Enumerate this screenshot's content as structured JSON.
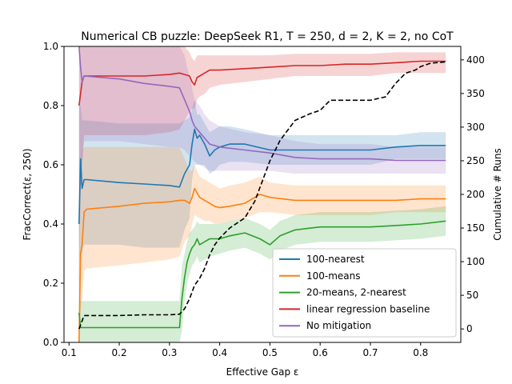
{
  "chart_data": {
    "type": "line",
    "title": "Numerical CB puzzle: DeepSeek R1, T = 250, d = 2, K = 2, no CoT",
    "xlabel": "Effective Gap ε",
    "ylabel": "FracCorrect(ε, 250)",
    "y2label": "Cumulative # Runs",
    "xlim": [
      0.09,
      0.88
    ],
    "ylim": [
      0.0,
      1.0
    ],
    "y2lim": [
      -20,
      420
    ],
    "xticks": [
      "0.1",
      "0.2",
      "0.3",
      "0.4",
      "0.5",
      "0.6",
      "0.7",
      "0.8"
    ],
    "xtick_values": [
      0.1,
      0.2,
      0.3,
      0.4,
      0.5,
      0.6,
      0.7,
      0.8
    ],
    "yticks": [
      "0.0",
      "0.2",
      "0.4",
      "0.6",
      "0.8",
      "1.0"
    ],
    "ytick_values": [
      0.0,
      0.2,
      0.4,
      0.6,
      0.8,
      1.0
    ],
    "y2ticks": [
      "0",
      "50",
      "100",
      "150",
      "200",
      "250",
      "300",
      "350",
      "400"
    ],
    "y2tick_values": [
      0,
      50,
      100,
      150,
      200,
      250,
      300,
      350,
      400
    ],
    "legend_position": "lower-right",
    "series": [
      {
        "name": "100-nearest",
        "color": "#1f77b4",
        "x": [
          0.12,
          0.123,
          0.126,
          0.13,
          0.135,
          0.2,
          0.25,
          0.3,
          0.32,
          0.33,
          0.34,
          0.345,
          0.35,
          0.355,
          0.36,
          0.37,
          0.38,
          0.39,
          0.4,
          0.42,
          0.45,
          0.5,
          0.55,
          0.6,
          0.65,
          0.7,
          0.75,
          0.8,
          0.85
        ],
        "y": [
          0.4,
          0.62,
          0.52,
          0.55,
          0.55,
          0.54,
          0.535,
          0.53,
          0.525,
          0.57,
          0.6,
          0.67,
          0.72,
          0.69,
          0.7,
          0.67,
          0.63,
          0.65,
          0.66,
          0.67,
          0.67,
          0.65,
          0.65,
          0.65,
          0.65,
          0.65,
          0.66,
          0.665,
          0.665
        ],
        "band_upper": [
          0.8,
          0.8,
          0.75,
          0.75,
          0.75,
          0.74,
          0.74,
          0.74,
          0.74,
          0.75,
          0.76,
          0.79,
          0.82,
          0.77,
          0.77,
          0.74,
          0.71,
          0.72,
          0.73,
          0.73,
          0.72,
          0.7,
          0.7,
          0.7,
          0.7,
          0.7,
          0.7,
          0.71,
          0.71
        ],
        "band_lower": [
          0.0,
          0.3,
          0.3,
          0.33,
          0.33,
          0.33,
          0.32,
          0.32,
          0.32,
          0.38,
          0.42,
          0.55,
          0.6,
          0.6,
          0.6,
          0.6,
          0.57,
          0.58,
          0.6,
          0.61,
          0.61,
          0.6,
          0.6,
          0.6,
          0.6,
          0.6,
          0.62,
          0.62,
          0.62
        ]
      },
      {
        "name": "100-means",
        "color": "#ff7f0e",
        "x": [
          0.12,
          0.123,
          0.126,
          0.13,
          0.135,
          0.2,
          0.25,
          0.3,
          0.32,
          0.33,
          0.34,
          0.345,
          0.35,
          0.36,
          0.37,
          0.38,
          0.39,
          0.4,
          0.42,
          0.45,
          0.48,
          0.5,
          0.55,
          0.6,
          0.65,
          0.7,
          0.75,
          0.8,
          0.85
        ],
        "y": [
          0.0,
          0.3,
          0.33,
          0.44,
          0.45,
          0.46,
          0.47,
          0.475,
          0.48,
          0.48,
          0.47,
          0.49,
          0.52,
          0.49,
          0.48,
          0.47,
          0.46,
          0.455,
          0.46,
          0.47,
          0.5,
          0.49,
          0.48,
          0.48,
          0.48,
          0.48,
          0.48,
          0.485,
          0.485
        ],
        "band_upper": [
          0.4,
          0.6,
          0.65,
          0.66,
          0.66,
          0.66,
          0.66,
          0.66,
          0.66,
          0.62,
          0.58,
          0.58,
          0.6,
          0.56,
          0.55,
          0.54,
          0.53,
          0.52,
          0.53,
          0.54,
          0.56,
          0.54,
          0.53,
          0.53,
          0.53,
          0.53,
          0.53,
          0.53,
          0.53
        ],
        "band_lower": [
          0.0,
          0.1,
          0.15,
          0.24,
          0.25,
          0.26,
          0.27,
          0.28,
          0.29,
          0.34,
          0.36,
          0.4,
          0.43,
          0.42,
          0.41,
          0.41,
          0.4,
          0.4,
          0.41,
          0.42,
          0.44,
          0.44,
          0.43,
          0.43,
          0.43,
          0.43,
          0.44,
          0.44,
          0.44
        ]
      },
      {
        "name": "20-means, 2-nearest",
        "color": "#2ca02c",
        "x": [
          0.12,
          0.123,
          0.126,
          0.13,
          0.2,
          0.25,
          0.3,
          0.32,
          0.325,
          0.33,
          0.335,
          0.34,
          0.345,
          0.35,
          0.355,
          0.36,
          0.37,
          0.38,
          0.4,
          0.42,
          0.45,
          0.48,
          0.5,
          0.52,
          0.55,
          0.6,
          0.65,
          0.7,
          0.75,
          0.8,
          0.85
        ],
        "y": [
          0.1,
          0.05,
          0.05,
          0.05,
          0.05,
          0.05,
          0.05,
          0.05,
          0.15,
          0.22,
          0.27,
          0.3,
          0.32,
          0.33,
          0.35,
          0.33,
          0.34,
          0.35,
          0.35,
          0.36,
          0.37,
          0.35,
          0.33,
          0.36,
          0.38,
          0.39,
          0.39,
          0.39,
          0.395,
          0.4,
          0.41
        ],
        "band_upper": [
          0.25,
          0.14,
          0.14,
          0.14,
          0.14,
          0.14,
          0.14,
          0.14,
          0.26,
          0.3,
          0.34,
          0.37,
          0.38,
          0.39,
          0.41,
          0.4,
          0.4,
          0.4,
          0.4,
          0.41,
          0.42,
          0.4,
          0.38,
          0.41,
          0.43,
          0.44,
          0.44,
          0.44,
          0.445,
          0.45,
          0.46
        ],
        "band_lower": [
          0.0,
          0.0,
          0.0,
          0.0,
          0.0,
          0.0,
          0.0,
          0.0,
          0.04,
          0.14,
          0.2,
          0.23,
          0.26,
          0.27,
          0.29,
          0.27,
          0.28,
          0.29,
          0.3,
          0.31,
          0.32,
          0.3,
          0.28,
          0.31,
          0.33,
          0.34,
          0.34,
          0.34,
          0.345,
          0.35,
          0.36
        ]
      },
      {
        "name": "linear regression baseline",
        "color": "#d62728",
        "x": [
          0.12,
          0.123,
          0.126,
          0.13,
          0.2,
          0.25,
          0.3,
          0.32,
          0.33,
          0.34,
          0.345,
          0.35,
          0.355,
          0.36,
          0.37,
          0.38,
          0.4,
          0.45,
          0.5,
          0.55,
          0.6,
          0.65,
          0.7,
          0.75,
          0.8,
          0.85
        ],
        "y": [
          0.8,
          0.84,
          0.88,
          0.9,
          0.9,
          0.9,
          0.905,
          0.91,
          0.905,
          0.9,
          0.88,
          0.87,
          0.895,
          0.9,
          0.91,
          0.92,
          0.92,
          0.925,
          0.93,
          0.935,
          0.935,
          0.94,
          0.94,
          0.945,
          0.95,
          0.95
        ],
        "band_upper": [
          1.0,
          1.0,
          1.0,
          1.0,
          1.0,
          1.0,
          1.0,
          1.0,
          1.0,
          0.98,
          0.96,
          0.95,
          0.97,
          0.97,
          0.97,
          0.97,
          0.97,
          0.97,
          0.97,
          0.975,
          0.975,
          0.975,
          0.975,
          0.98,
          0.98,
          0.98
        ],
        "band_lower": [
          0.2,
          0.5,
          0.6,
          0.7,
          0.7,
          0.7,
          0.71,
          0.72,
          0.75,
          0.78,
          0.79,
          0.79,
          0.82,
          0.83,
          0.84,
          0.86,
          0.87,
          0.88,
          0.89,
          0.9,
          0.9,
          0.9,
          0.9,
          0.91,
          0.91,
          0.91
        ]
      },
      {
        "name": "No mitigation",
        "color": "#9467bd",
        "x": [
          0.12,
          0.123,
          0.126,
          0.13,
          0.2,
          0.25,
          0.3,
          0.32,
          0.33,
          0.335,
          0.34,
          0.345,
          0.35,
          0.36,
          0.37,
          0.38,
          0.4,
          0.45,
          0.5,
          0.55,
          0.6,
          0.65,
          0.7,
          0.75,
          0.8,
          0.85
        ],
        "y": [
          1.0,
          0.93,
          0.88,
          0.9,
          0.89,
          0.875,
          0.865,
          0.86,
          0.82,
          0.8,
          0.78,
          0.75,
          0.73,
          0.71,
          0.69,
          0.67,
          0.66,
          0.65,
          0.64,
          0.625,
          0.62,
          0.62,
          0.62,
          0.615,
          0.615,
          0.615
        ],
        "band_upper": [
          1.0,
          1.0,
          1.0,
          1.0,
          1.0,
          1.0,
          1.0,
          1.0,
          0.97,
          0.93,
          0.9,
          0.86,
          0.82,
          0.8,
          0.77,
          0.75,
          0.73,
          0.71,
          0.7,
          0.68,
          0.67,
          0.67,
          0.67,
          0.66,
          0.66,
          0.66
        ],
        "band_lower": [
          0.5,
          0.55,
          0.6,
          0.68,
          0.68,
          0.67,
          0.66,
          0.66,
          0.65,
          0.64,
          0.63,
          0.62,
          0.61,
          0.6,
          0.59,
          0.58,
          0.58,
          0.58,
          0.58,
          0.57,
          0.57,
          0.57,
          0.57,
          0.57,
          0.57,
          0.57
        ]
      }
    ],
    "cumulative_runs": {
      "name": "Cumulative # Runs",
      "color": "#000000",
      "style": "dashed",
      "axis": "right",
      "x": [
        0.12,
        0.125,
        0.13,
        0.15,
        0.2,
        0.25,
        0.3,
        0.32,
        0.33,
        0.34,
        0.35,
        0.36,
        0.37,
        0.38,
        0.39,
        0.4,
        0.42,
        0.45,
        0.47,
        0.5,
        0.52,
        0.55,
        0.58,
        0.6,
        0.62,
        0.65,
        0.7,
        0.73,
        0.75,
        0.77,
        0.79,
        0.8,
        0.82,
        0.85
      ],
      "y": [
        0,
        10,
        20,
        20,
        20,
        21,
        21,
        22,
        30,
        45,
        65,
        75,
        90,
        110,
        125,
        135,
        150,
        165,
        190,
        250,
        280,
        310,
        320,
        325,
        340,
        340,
        340,
        345,
        365,
        380,
        385,
        390,
        395,
        397
      ]
    }
  }
}
